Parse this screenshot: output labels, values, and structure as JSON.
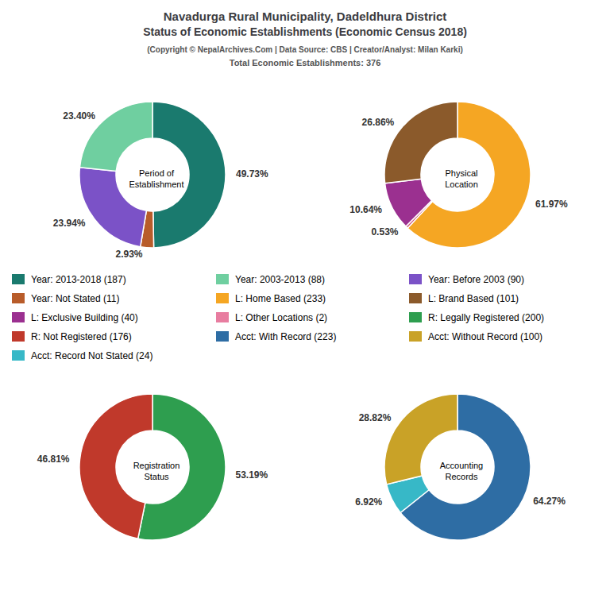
{
  "title": [
    "Navadurga Rural Municipality, Dadeldhura District",
    "Status of Economic Establishments (Economic Census 2018)"
  ],
  "subtitle": [
    "(Copyright © NepalArchives.Com | Data Source: CBS | Creator/Analyst: Milan Karki)",
    "Total Economic Establishments: 376"
  ],
  "chart_data": [
    {
      "type": "pie",
      "title": "Period of\nEstablishment",
      "values": [
        49.73,
        2.93,
        23.94,
        23.4
      ],
      "colors": [
        "#1a7a6e",
        "#b85c2a",
        "#7b52c7",
        "#6fcfa0"
      ],
      "data_labels": true,
      "value_labels": [
        "49.73%",
        "2.93%",
        "23.94%",
        "23.40%"
      ]
    },
    {
      "type": "pie",
      "title": "Physical\nLocation",
      "values": [
        61.97,
        0.53,
        10.64,
        26.86
      ],
      "colors": [
        "#f5a623",
        "#cc5577",
        "#9b3090",
        "#8b5a2b"
      ],
      "data_labels": true,
      "value_labels": [
        "61.97%",
        "0.53%",
        "10.64%",
        "26.86%"
      ]
    },
    {
      "type": "pie",
      "title": "Registration\nStatus",
      "values": [
        53.19,
        46.81
      ],
      "colors": [
        "#2e9e4f",
        "#c0392b"
      ],
      "data_labels": true,
      "value_labels": [
        "53.19%",
        "46.81%"
      ]
    },
    {
      "type": "pie",
      "title": "Accounting\nRecords",
      "values": [
        64.27,
        6.92,
        28.82
      ],
      "colors": [
        "#2e6da4",
        "#37b8c7",
        "#c9a227"
      ],
      "data_labels": true,
      "value_labels": [
        "64.27%",
        "6.92%",
        "28.82%"
      ]
    }
  ],
  "legend_items": [
    [
      {
        "label": "Year: 2013-2018 (187)",
        "color": "#1a7a6e"
      },
      {
        "label": "Year: Not Stated (11)",
        "color": "#b85c2a"
      },
      {
        "label": "L: Exclusive Building (40)",
        "color": "#9b3090"
      },
      {
        "label": "R: Not Registered (176)",
        "color": "#c0392b"
      },
      {
        "label": "Acct: Record Not Stated (24)",
        "color": "#37b8c7"
      }
    ],
    [
      {
        "label": "Year: 2003-2013 (88)",
        "color": "#6fcfa0"
      },
      {
        "label": "L: Home Based (233)",
        "color": "#f5a623"
      },
      {
        "label": "L: Other Locations (2)",
        "color": "#e87da0"
      },
      {
        "label": "Acct: With Record (223)",
        "color": "#2e6da4"
      }
    ],
    [
      {
        "label": "Year: Before 2003 (90)",
        "color": "#7b52c7"
      },
      {
        "label": "L: Brand Based (101)",
        "color": "#8b5a2b"
      },
      {
        "label": "R: Legally Registered (200)",
        "color": "#2e9e4f"
      },
      {
        "label": "Acct: Without Record (100)",
        "color": "#c9a227"
      }
    ]
  ]
}
